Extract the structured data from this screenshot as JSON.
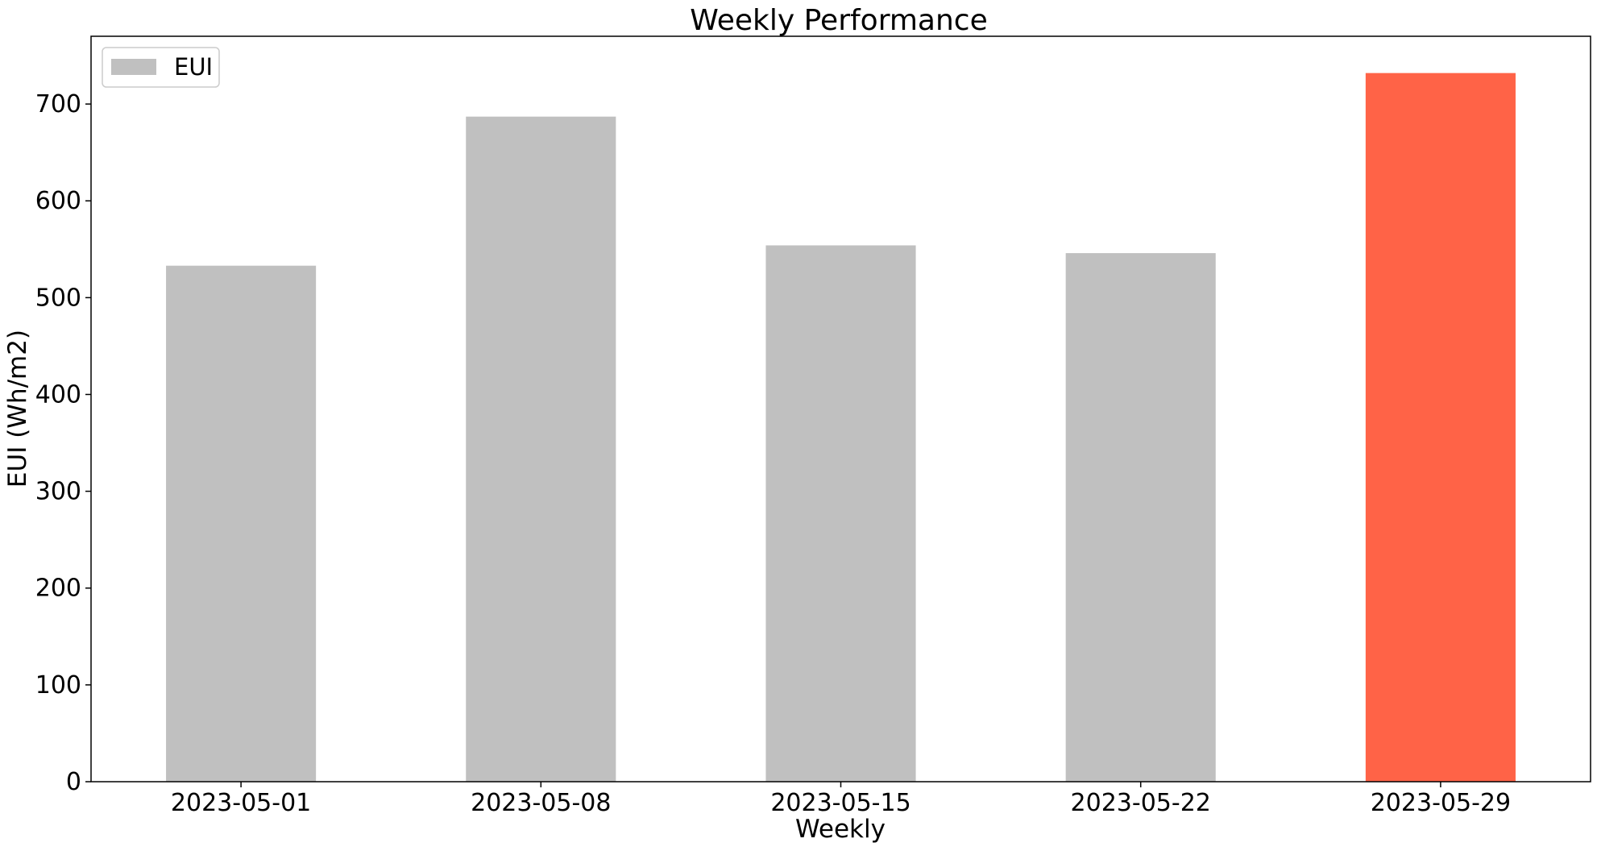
{
  "chart_data": {
    "type": "bar",
    "title": "Weekly Performance",
    "xlabel": "Weekly",
    "ylabel": "EUI (Wh/m2)",
    "categories": [
      "2023-05-01",
      "2023-05-08",
      "2023-05-15",
      "2023-05-22",
      "2023-05-29"
    ],
    "series": [
      {
        "name": "EUI",
        "values": [
          533,
          687,
          554,
          546,
          732
        ]
      }
    ],
    "bar_colors": [
      "#c0c0c0",
      "#c0c0c0",
      "#c0c0c0",
      "#c0c0c0",
      "#ff6347"
    ],
    "legend_color": "#c0c0c0",
    "ylim": [
      0,
      770
    ],
    "yticks": [
      0,
      100,
      200,
      300,
      400,
      500,
      600,
      700
    ],
    "grid": false,
    "legend_position": "top-left"
  }
}
